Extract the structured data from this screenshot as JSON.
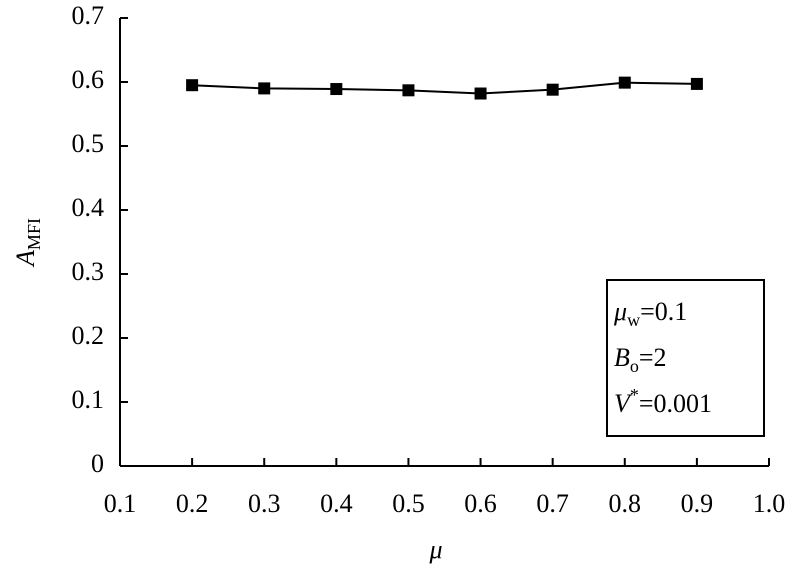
{
  "chart_data": {
    "type": "line",
    "x": [
      0.2,
      0.3,
      0.4,
      0.5,
      0.6,
      0.7,
      0.8,
      0.9
    ],
    "series": [
      {
        "color": "#000000",
        "values": [
          0.595,
          0.59,
          0.589,
          0.587,
          0.582,
          0.588,
          0.599,
          0.597
        ]
      }
    ],
    "xlim": [
      0.1,
      1.0
    ],
    "xticks": [
      0.1,
      0.2,
      0.3,
      0.4,
      0.5,
      0.6,
      0.7,
      0.8,
      0.9,
      {
        "value": 1.0,
        "label": "1.0"
      }
    ],
    "ylim": [
      0,
      0.7
    ],
    "yticks": [
      0,
      0.1,
      0.2,
      0.3,
      0.4,
      0.5,
      0.6,
      0.7
    ],
    "xlabel": "μ",
    "ylabel": {
      "symbol": "A",
      "sub": "MFI"
    },
    "annotation": [
      {
        "symbol": "μ",
        "sub": "w",
        "value": "=0.1"
      },
      {
        "symbol": "B",
        "sub": "o",
        "value": "=2"
      },
      {
        "symbol": "V",
        "sup": "*",
        "value": "=0.001"
      }
    ],
    "grid": false
  }
}
